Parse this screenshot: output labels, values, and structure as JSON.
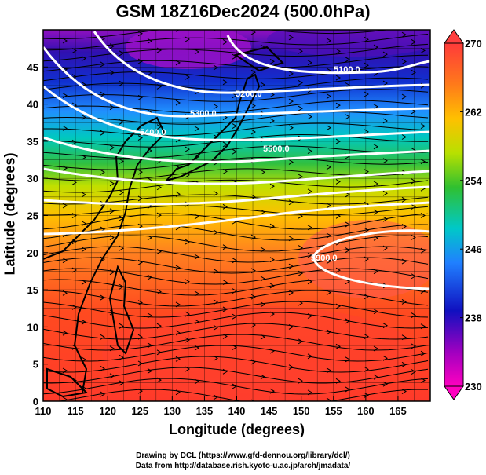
{
  "title": "GSM 18Z16Dec2024 (500.0hPa)",
  "axes": {
    "xlabel": "Longitude (degrees)",
    "ylabel": "Latitude  (degrees)",
    "x_ticks": [
      "110",
      "115",
      "120",
      "125",
      "130",
      "135",
      "140",
      "145",
      "150",
      "155",
      "160",
      "165"
    ],
    "y_ticks": [
      "0",
      "5",
      "10",
      "15",
      "20",
      "25",
      "30",
      "35",
      "40",
      "45"
    ]
  },
  "colorbar": {
    "ticks": [
      "270",
      "262",
      "254",
      "246",
      "238",
      "230"
    ],
    "colors": [
      "#e0e0ff",
      "#ff3a3a",
      "#ff7a1a",
      "#ffc000",
      "#b8e000",
      "#30c030",
      "#00c8c8",
      "#2080ff",
      "#1010c0",
      "#a000c0",
      "#ff00c0"
    ]
  },
  "contours": {
    "labels": [
      "5100.0",
      "5200.0",
      "5300.0",
      "5400.0",
      "5500.0",
      "5900.0"
    ]
  },
  "chart_data": {
    "type": "heatmap",
    "title": "GSM 18Z16Dec2024 (500.0hPa)",
    "xlabel": "Longitude (degrees)",
    "ylabel": "Latitude  (degrees)",
    "xlim": [
      110,
      170
    ],
    "ylim": [
      0,
      50
    ],
    "color_range": [
      230,
      270
    ],
    "grid": true,
    "contour_values": [
      5100,
      5200,
      5300,
      5400,
      5500,
      5900
    ]
  },
  "credits": {
    "line1": "Drawing by DCL (https://www.gfd-dennou.org/library/dcl/)",
    "line2": "Data from http://database.rish.kyoto-u.ac.jp/arch/jmadata/"
  }
}
